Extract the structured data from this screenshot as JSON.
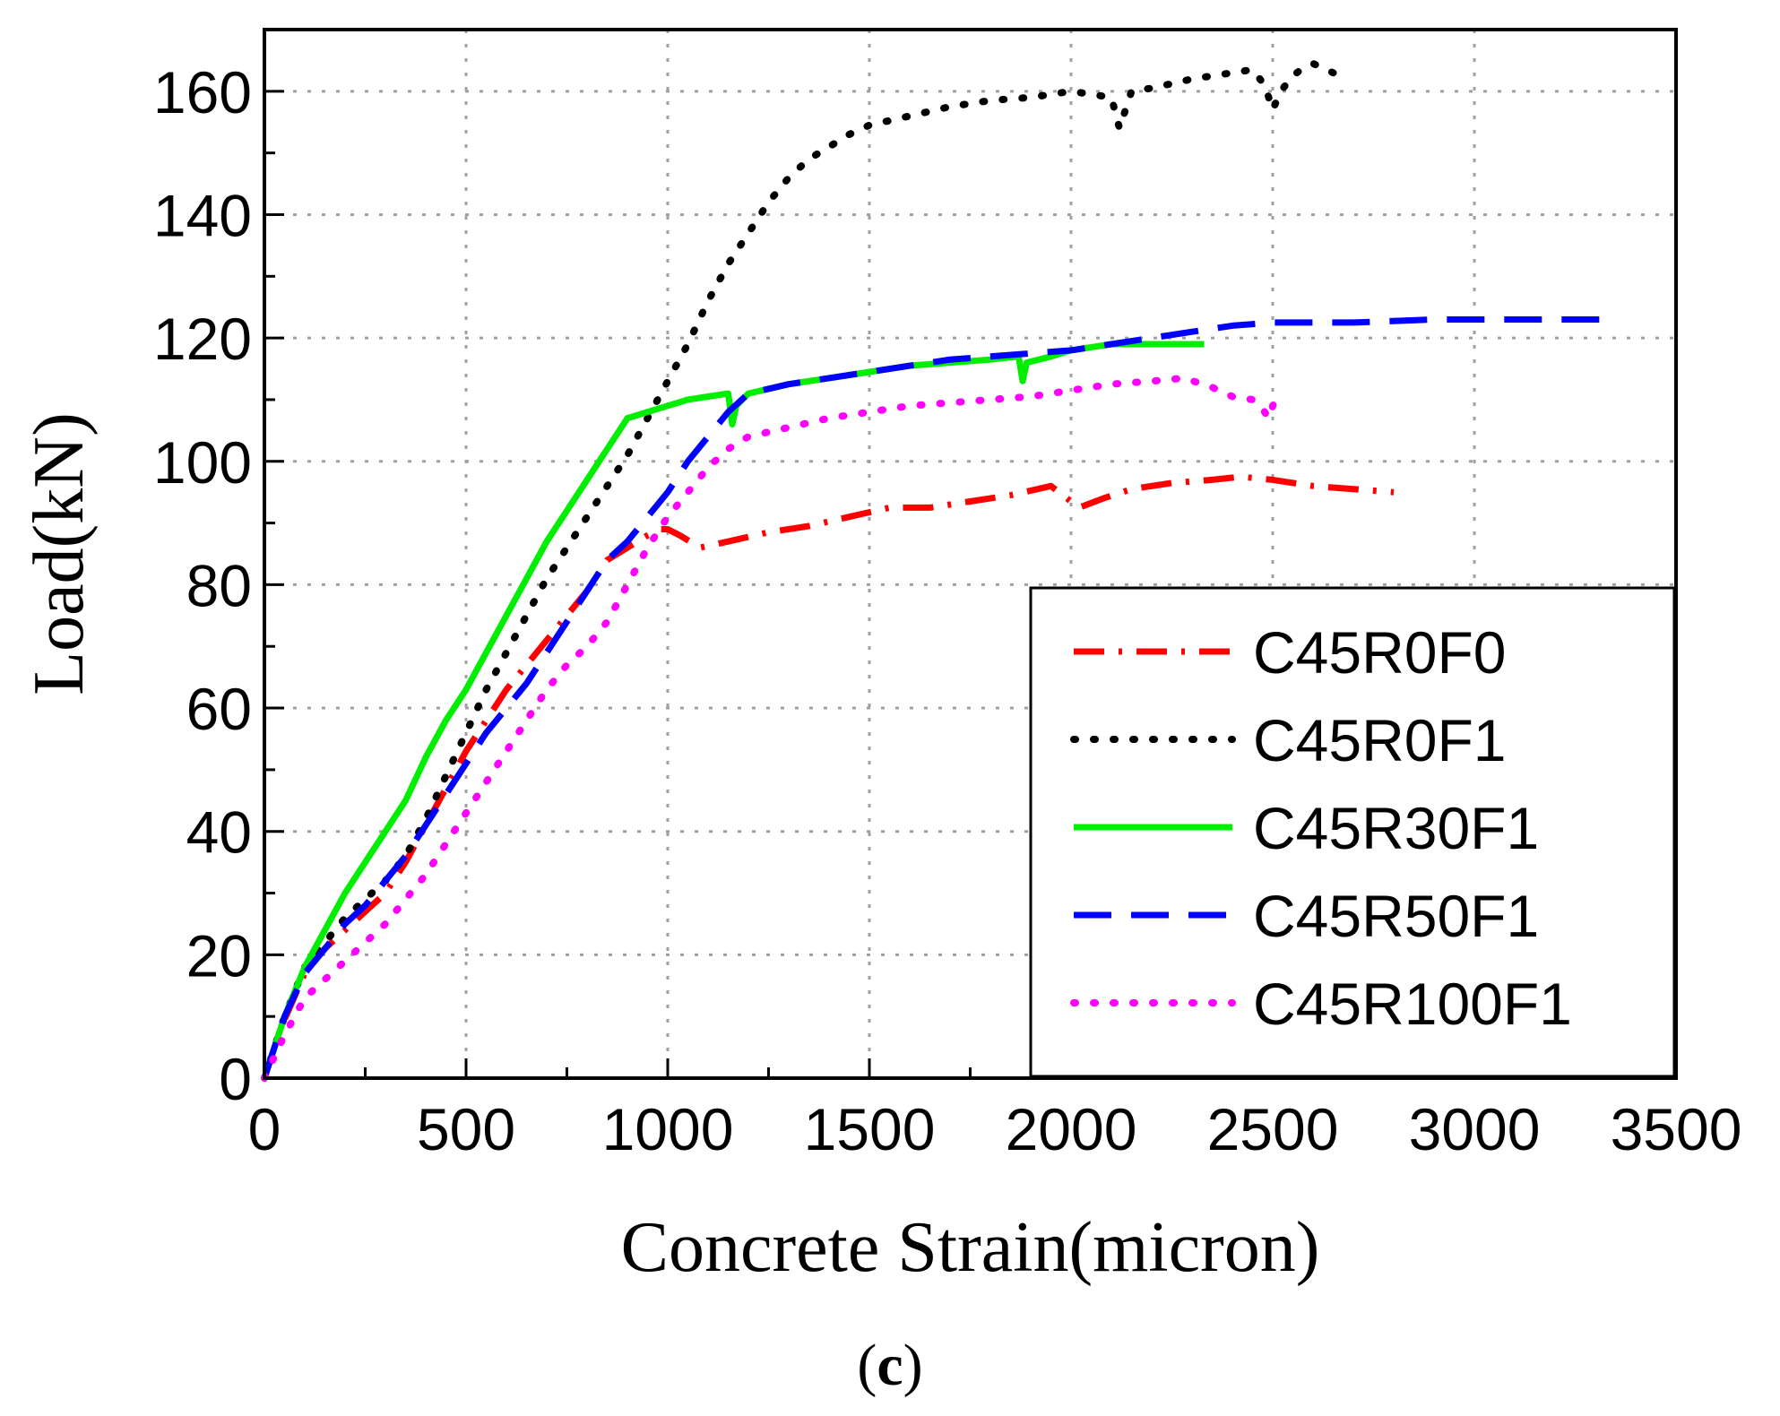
{
  "chart_data": {
    "type": "line",
    "title": "",
    "xlabel": "Concrete Strain(micron)",
    "ylabel": "Load(kN)",
    "xlim": [
      0,
      3500
    ],
    "ylim": [
      0,
      170
    ],
    "xticks": [
      0,
      500,
      1000,
      1500,
      2000,
      2500,
      3000,
      3500
    ],
    "yticks": [
      0,
      20,
      40,
      60,
      80,
      100,
      120,
      140,
      160
    ],
    "xtick_labels": [
      "0",
      "500",
      "1000",
      "1500",
      "2000",
      "2500",
      "3000",
      "3500"
    ],
    "ytick_labels": [
      "0",
      "20",
      "40",
      "60",
      "80",
      "100",
      "120",
      "140",
      "160"
    ],
    "grid": true,
    "legend_position": "bottom-right",
    "sub_label": {
      "open": "(",
      "letter": "c",
      "close": ")"
    },
    "series": [
      {
        "name": "C45R0F0",
        "color": "#ff0000",
        "style": "dash-dot",
        "x": [
          0,
          40,
          100,
          150,
          200,
          250,
          300,
          350,
          400,
          450,
          500,
          550,
          600,
          650,
          700,
          750,
          800,
          850,
          900,
          950,
          980,
          1000,
          1030,
          1080,
          1150,
          1250,
          1350,
          1450,
          1550,
          1650,
          1750,
          1850,
          1950,
          1990,
          2020,
          2080,
          2150,
          2250,
          2350,
          2420,
          2500,
          2600,
          2700,
          2800
        ],
        "y": [
          0,
          8,
          17,
          21,
          24,
          27,
          30,
          35,
          41,
          47,
          53,
          58,
          63,
          67,
          71,
          75,
          79,
          84,
          86,
          88,
          89,
          89,
          88,
          86,
          87,
          88.5,
          89.5,
          91,
          92.5,
          92.5,
          93.5,
          94.5,
          96,
          94,
          92.5,
          94,
          95.5,
          96.5,
          97,
          97.5,
          97,
          96,
          95.5,
          95
        ]
      },
      {
        "name": "C45R0F1",
        "color": "#000000",
        "style": "dot",
        "x": [
          0,
          50,
          100,
          150,
          200,
          250,
          300,
          350,
          400,
          450,
          500,
          550,
          600,
          650,
          700,
          750,
          800,
          850,
          900,
          950,
          1000,
          1050,
          1100,
          1150,
          1200,
          1250,
          1300,
          1350,
          1400,
          1450,
          1500,
          1600,
          1700,
          1800,
          1900,
          1950,
          2000,
          2050,
          2100,
          2120,
          2150,
          2200,
          2300,
          2400,
          2450,
          2480,
          2500,
          2520,
          2550,
          2580,
          2600,
          2650
        ],
        "y": [
          0,
          10,
          18,
          22,
          26,
          29,
          32,
          36,
          42,
          49,
          56,
          63,
          69,
          75,
          81,
          86,
          91,
          96,
          101,
          107,
          113,
          119,
          126,
          132,
          137,
          142,
          146,
          149,
          151,
          153,
          154.5,
          156,
          157.5,
          158.5,
          159,
          159.5,
          160,
          159.5,
          159,
          154,
          160,
          160.5,
          162,
          163,
          163.5,
          161,
          157,
          160,
          162.5,
          164,
          164.5,
          163
        ]
      },
      {
        "name": "C45R30F1",
        "color": "#00ee00",
        "style": "solid",
        "x": [
          0,
          50,
          100,
          150,
          200,
          250,
          300,
          350,
          400,
          450,
          500,
          550,
          600,
          650,
          700,
          750,
          800,
          850,
          880,
          900,
          950,
          1000,
          1050,
          1100,
          1150,
          1160,
          1170,
          1200,
          1300,
          1400,
          1500,
          1600,
          1700,
          1800,
          1870,
          1880,
          1890,
          1950,
          2000,
          2100,
          2200,
          2300,
          2330
        ],
        "y": [
          0,
          10,
          18,
          24,
          30,
          35,
          40,
          45,
          52,
          58,
          63,
          69,
          75,
          81,
          87,
          92,
          97,
          102,
          105,
          107,
          108,
          109,
          110,
          110.5,
          111,
          106,
          109,
          111,
          112.5,
          113.5,
          114.5,
          115.5,
          116,
          116.5,
          117,
          113,
          116,
          117,
          118,
          119,
          119,
          119,
          119
        ]
      },
      {
        "name": "C45R50F1",
        "color": "#0000ff",
        "style": "dash",
        "x": [
          0,
          50,
          100,
          150,
          200,
          250,
          300,
          350,
          400,
          450,
          500,
          550,
          600,
          650,
          700,
          750,
          800,
          820,
          850,
          900,
          950,
          1000,
          1050,
          1100,
          1150,
          1200,
          1300,
          1400,
          1500,
          1600,
          1700,
          1800,
          1900,
          2000,
          2100,
          2200,
          2300,
          2400,
          2500,
          2700,
          2900,
          3100,
          3200,
          3300,
          3350
        ],
        "y": [
          0,
          10,
          17,
          21,
          25,
          28,
          32,
          36,
          41,
          46,
          51,
          56,
          60,
          64,
          69,
          74,
          79,
          81,
          84,
          87,
          91,
          95,
          100,
          104,
          108,
          111,
          112.5,
          113.5,
          114.5,
          115.5,
          116.5,
          117,
          117.5,
          118,
          119,
          120,
          121,
          122,
          122.5,
          122.5,
          123,
          123,
          123,
          123,
          123
        ]
      },
      {
        "name": "C45R100F1",
        "color": "#ff00ff",
        "style": "dot",
        "x": [
          0,
          50,
          100,
          150,
          200,
          250,
          300,
          350,
          400,
          450,
          500,
          550,
          600,
          650,
          700,
          750,
          800,
          850,
          900,
          950,
          1000,
          1050,
          1100,
          1150,
          1200,
          1300,
          1400,
          1500,
          1600,
          1700,
          1800,
          1900,
          2000,
          2100,
          2200,
          2280,
          2350,
          2400,
          2450,
          2470,
          2490,
          2500,
          2510
        ],
        "y": [
          0,
          7,
          13,
          16,
          19,
          22,
          25,
          29,
          33,
          38,
          43,
          48,
          53,
          58,
          63,
          67,
          70,
          74,
          80,
          86,
          91,
          95,
          99,
          102,
          104,
          105.5,
          107,
          108,
          109,
          109.5,
          110,
          110.5,
          111.5,
          112.5,
          113,
          113.5,
          112,
          110.5,
          110,
          109,
          107,
          109,
          110
        ]
      }
    ]
  }
}
